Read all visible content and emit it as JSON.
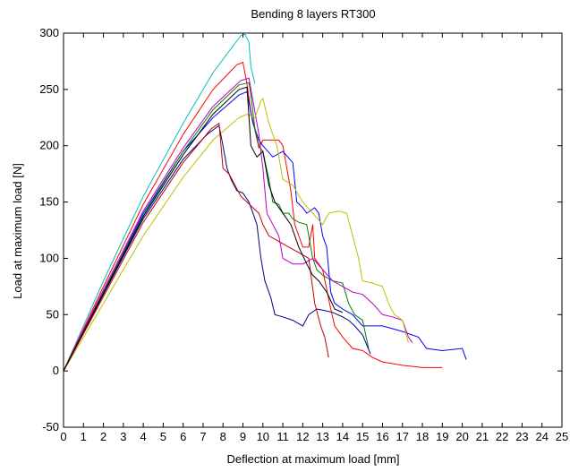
{
  "chart_data": {
    "type": "line",
    "title": "Bending 8 layers RT300",
    "xlabel": "Deflection at maximum load [mm]",
    "ylabel": "Load at maximum load [N]",
    "xlim": [
      0,
      25
    ],
    "ylim": [
      -50,
      300
    ],
    "xticks": [
      "0",
      "1",
      "2",
      "3",
      "4",
      "5",
      "6",
      "7",
      "8",
      "9",
      "10",
      "11",
      "12",
      "13",
      "14",
      "15",
      "16",
      "17",
      "18",
      "19",
      "20",
      "21",
      "22",
      "23",
      "24",
      "25"
    ],
    "yticks": [
      "-50",
      "0",
      "50",
      "100",
      "150",
      "200",
      "250",
      "300"
    ],
    "grid": false,
    "legend": "none",
    "series": [
      {
        "color": "#00bfbf",
        "values": [
          [
            0,
            0
          ],
          [
            2,
            80
          ],
          [
            4,
            155
          ],
          [
            6,
            220
          ],
          [
            7.5,
            265
          ],
          [
            8.9,
            298
          ],
          [
            9.1,
            299
          ],
          [
            9.3,
            292
          ],
          [
            9.4,
            270
          ],
          [
            9.6,
            255
          ]
        ]
      },
      {
        "color": "#ff0000",
        "values": [
          [
            0,
            0
          ],
          [
            2,
            75
          ],
          [
            4,
            148
          ],
          [
            6,
            210
          ],
          [
            7.5,
            250
          ],
          [
            8.7,
            272
          ],
          [
            9.0,
            274
          ],
          [
            9.2,
            255
          ],
          [
            9.4,
            230
          ],
          [
            9.8,
            198
          ],
          [
            10,
            205
          ],
          [
            10.8,
            205
          ],
          [
            11.0,
            200
          ],
          [
            11.4,
            160
          ],
          [
            11.6,
            130
          ],
          [
            12.0,
            110
          ],
          [
            12.3,
            110
          ],
          [
            12.5,
            130
          ],
          [
            12.6,
            100
          ],
          [
            13.0,
            90
          ],
          [
            13.4,
            55
          ],
          [
            13.6,
            40
          ],
          [
            14.0,
            30
          ],
          [
            14.5,
            20
          ],
          [
            15.0,
            18
          ],
          [
            15.5,
            12
          ],
          [
            16,
            8
          ],
          [
            17,
            5
          ],
          [
            18,
            3
          ],
          [
            19,
            3
          ]
        ]
      },
      {
        "color": "#0000ff",
        "values": [
          [
            0,
            0
          ],
          [
            2,
            70
          ],
          [
            4,
            140
          ],
          [
            6,
            195
          ],
          [
            7.5,
            225
          ],
          [
            8.8,
            245
          ],
          [
            9.2,
            248
          ],
          [
            9.5,
            220
          ],
          [
            9.8,
            205
          ],
          [
            10,
            200
          ],
          [
            10.5,
            190
          ],
          [
            11,
            195
          ],
          [
            11.5,
            185
          ],
          [
            11.7,
            150
          ],
          [
            12.0,
            145
          ],
          [
            12.2,
            140
          ],
          [
            12.6,
            145
          ],
          [
            12.8,
            140
          ],
          [
            13.0,
            120
          ],
          [
            13.2,
            110
          ],
          [
            13.4,
            70
          ],
          [
            13.6,
            60
          ],
          [
            14.0,
            55
          ],
          [
            14.5,
            50
          ],
          [
            15,
            40
          ],
          [
            16,
            40
          ],
          [
            17,
            35
          ],
          [
            17.8,
            30
          ],
          [
            18.2,
            20
          ],
          [
            19,
            18
          ],
          [
            20,
            20
          ],
          [
            20.2,
            10
          ]
        ]
      },
      {
        "color": "#008000",
        "values": [
          [
            0,
            0
          ],
          [
            2,
            70
          ],
          [
            4,
            138
          ],
          [
            6,
            195
          ],
          [
            7.5,
            232
          ],
          [
            8.8,
            254
          ],
          [
            9.3,
            256
          ],
          [
            9.4,
            245
          ],
          [
            9.6,
            215
          ],
          [
            9.8,
            200
          ],
          [
            10,
            195
          ],
          [
            10.3,
            170
          ],
          [
            10.5,
            150
          ],
          [
            10.8,
            148
          ],
          [
            11,
            140
          ],
          [
            11.3,
            140
          ],
          [
            11.5,
            135
          ],
          [
            11.8,
            132
          ],
          [
            12.2,
            130
          ],
          [
            12.5,
            100
          ],
          [
            12.7,
            90
          ],
          [
            13,
            85
          ],
          [
            13.5,
            80
          ],
          [
            14,
            78
          ],
          [
            14.3,
            60
          ],
          [
            14.6,
            50
          ],
          [
            15,
            45
          ],
          [
            15.3,
            20
          ]
        ]
      },
      {
        "color": "#bf00bf",
        "values": [
          [
            0,
            0
          ],
          [
            2,
            72
          ],
          [
            4,
            142
          ],
          [
            6,
            198
          ],
          [
            7.5,
            235
          ],
          [
            8.9,
            258
          ],
          [
            9.3,
            260
          ],
          [
            9.5,
            240
          ],
          [
            9.8,
            210
          ],
          [
            10,
            180
          ],
          [
            10.2,
            140
          ],
          [
            10.5,
            130
          ],
          [
            10.8,
            120
          ],
          [
            11,
            100
          ],
          [
            11.5,
            95
          ],
          [
            12,
            95
          ],
          [
            12.5,
            100
          ],
          [
            13,
            90
          ],
          [
            13.5,
            80
          ],
          [
            14,
            75
          ],
          [
            14.5,
            70
          ],
          [
            15,
            68
          ],
          [
            15.5,
            60
          ],
          [
            16,
            50
          ],
          [
            16.5,
            48
          ],
          [
            17,
            45
          ],
          [
            17.3,
            30
          ],
          [
            17.5,
            25
          ]
        ]
      },
      {
        "color": "#bfbf00",
        "values": [
          [
            0,
            0
          ],
          [
            2,
            60
          ],
          [
            4,
            120
          ],
          [
            6,
            172
          ],
          [
            7.5,
            205
          ],
          [
            8.8,
            225
          ],
          [
            9.2,
            228
          ],
          [
            9.6,
            225
          ],
          [
            9.9,
            240
          ],
          [
            10,
            242
          ],
          [
            10.3,
            220
          ],
          [
            10.7,
            200
          ],
          [
            11,
            170
          ],
          [
            11.5,
            165
          ],
          [
            12,
            150
          ],
          [
            12.5,
            140
          ],
          [
            13,
            130
          ],
          [
            13.3,
            140
          ],
          [
            13.8,
            142
          ],
          [
            14.2,
            140
          ],
          [
            14.5,
            120
          ],
          [
            14.8,
            100
          ],
          [
            15.0,
            80
          ],
          [
            15.5,
            78
          ],
          [
            16,
            75
          ],
          [
            16.3,
            60
          ],
          [
            16.6,
            50
          ],
          [
            17,
            45
          ],
          [
            17.3,
            25
          ]
        ]
      },
      {
        "color": "#000080",
        "values": [
          [
            0,
            0
          ],
          [
            2,
            68
          ],
          [
            4,
            135
          ],
          [
            6,
            188
          ],
          [
            7.2,
            210
          ],
          [
            7.8,
            218
          ],
          [
            8.0,
            200
          ],
          [
            8.2,
            180
          ],
          [
            8.4,
            170
          ],
          [
            8.7,
            160
          ],
          [
            9.0,
            158
          ],
          [
            9.3,
            150
          ],
          [
            9.5,
            140
          ],
          [
            9.7,
            130
          ],
          [
            9.9,
            100
          ],
          [
            10.1,
            80
          ],
          [
            10.4,
            65
          ],
          [
            10.6,
            50
          ],
          [
            11,
            48
          ],
          [
            11.5,
            45
          ],
          [
            12,
            40
          ],
          [
            12.3,
            50
          ],
          [
            12.7,
            55
          ],
          [
            13,
            54
          ],
          [
            13.5,
            52
          ],
          [
            14,
            48
          ],
          [
            14.3,
            45
          ],
          [
            14.6,
            40
          ],
          [
            15.0,
            32
          ],
          [
            15.4,
            15
          ]
        ]
      },
      {
        "color": "#bf0000",
        "values": [
          [
            0,
            0
          ],
          [
            2,
            66
          ],
          [
            4,
            132
          ],
          [
            6,
            185
          ],
          [
            7.4,
            215
          ],
          [
            7.8,
            220
          ],
          [
            8.0,
            180
          ],
          [
            8.3,
            175
          ],
          [
            8.6,
            165
          ],
          [
            8.9,
            155
          ],
          [
            9.2,
            150
          ],
          [
            9.5,
            145
          ],
          [
            9.8,
            140
          ],
          [
            10.0,
            130
          ],
          [
            10.3,
            120
          ],
          [
            10.8,
            115
          ],
          [
            11.3,
            110
          ],
          [
            11.8,
            105
          ],
          [
            12.3,
            100
          ],
          [
            12.6,
            60
          ],
          [
            12.9,
            40
          ],
          [
            13.1,
            30
          ],
          [
            13.3,
            12
          ]
        ]
      },
      {
        "color": "#000000",
        "values": [
          [
            0,
            0
          ],
          [
            2,
            69
          ],
          [
            4,
            137
          ],
          [
            6,
            192
          ],
          [
            7.5,
            228
          ],
          [
            8.8,
            250
          ],
          [
            9.2,
            252
          ],
          [
            9.4,
            200
          ],
          [
            9.7,
            190
          ],
          [
            10,
            195
          ],
          [
            10.3,
            165
          ],
          [
            10.6,
            150
          ],
          [
            11,
            140
          ],
          [
            11.4,
            130
          ],
          [
            11.8,
            110
          ],
          [
            12.2,
            95
          ],
          [
            12.5,
            85
          ],
          [
            12.8,
            80
          ],
          [
            13.2,
            70
          ],
          [
            13.6,
            55
          ],
          [
            14.0,
            52
          ]
        ]
      }
    ]
  }
}
